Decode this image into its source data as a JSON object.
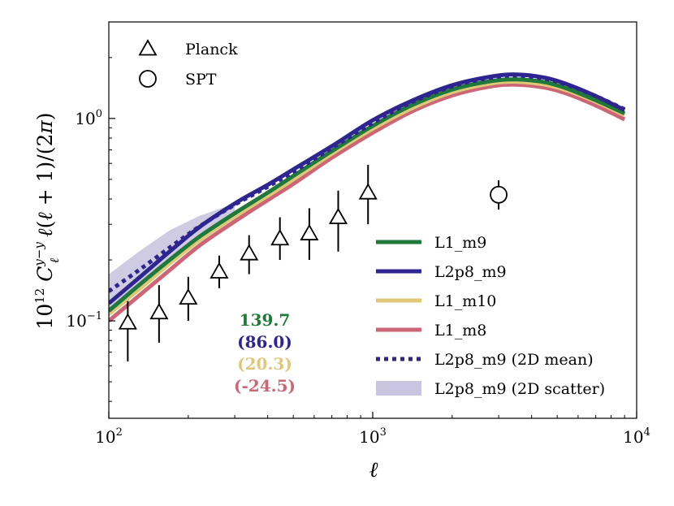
{
  "chart_data": {
    "type": "line",
    "title": "",
    "xlabel": "ℓ",
    "ylabel": "10¹² C_ℓ^{y−y} ℓ(ℓ+1)/(2π)",
    "xscale": "log",
    "yscale": "log",
    "xlim": [
      100,
      10000
    ],
    "ylim": [
      0.033,
      3.0
    ],
    "grid": false,
    "x_ticks": [
      {
        "value": 100,
        "base": "10",
        "exp": "2"
      },
      {
        "value": 1000,
        "base": "10",
        "exp": "3"
      },
      {
        "value": 10000,
        "base": "10",
        "exp": "4"
      }
    ],
    "y_ticks": [
      {
        "value": 0.1,
        "base": "10",
        "exp": "−1"
      },
      {
        "value": 1.0,
        "base": "10",
        "exp": "0"
      }
    ],
    "x": [
      100,
      130,
      170,
      220,
      300,
      400,
      500,
      700,
      1000,
      1400,
      2000,
      2800,
      3500,
      4500,
      5500,
      7000,
      9000
    ],
    "series": [
      {
        "name": "L1_m9",
        "color": "#1f7a3a",
        "style": "solid",
        "values": [
          0.112,
          0.15,
          0.2,
          0.26,
          0.34,
          0.43,
          0.52,
          0.69,
          0.92,
          1.16,
          1.39,
          1.53,
          1.56,
          1.51,
          1.4,
          1.23,
          1.06
        ]
      },
      {
        "name": "L2p8_m9",
        "color": "#2e2590",
        "style": "solid",
        "values": [
          0.122,
          0.163,
          0.22,
          0.29,
          0.38,
          0.47,
          0.56,
          0.73,
          0.98,
          1.22,
          1.46,
          1.61,
          1.65,
          1.59,
          1.47,
          1.29,
          1.1
        ]
      },
      {
        "name": "L1_m10",
        "color": "#e0c878",
        "style": "solid",
        "values": [
          0.108,
          0.143,
          0.192,
          0.25,
          0.328,
          0.415,
          0.5,
          0.67,
          0.89,
          1.12,
          1.35,
          1.49,
          1.52,
          1.47,
          1.37,
          1.21,
          1.04
        ]
      },
      {
        "name": "L1_m8",
        "color": "#cc6677",
        "style": "solid",
        "values": [
          0.1,
          0.133,
          0.178,
          0.235,
          0.31,
          0.395,
          0.475,
          0.64,
          0.85,
          1.08,
          1.3,
          1.44,
          1.47,
          1.42,
          1.32,
          1.16,
          0.99
        ]
      },
      {
        "name": "L2p8_m9 (2D mean)",
        "color": "#2e2590",
        "style": "dotted",
        "values": [
          0.14,
          0.178,
          0.23,
          0.292,
          0.375,
          0.46,
          0.545,
          0.715,
          0.95,
          1.2,
          1.44,
          1.59,
          1.63,
          1.57,
          1.46,
          1.29,
          1.11
        ]
      }
    ],
    "scatter_band": {
      "name": "L2p8_m9 (2D scatter)",
      "color": "#c9c5e0",
      "x": [
        100,
        130,
        170,
        220,
        300
      ],
      "lower": [
        0.105,
        0.14,
        0.19,
        0.25,
        0.33
      ],
      "upper": [
        0.17,
        0.22,
        0.28,
        0.33,
        0.38
      ]
    },
    "observations": [
      {
        "name": "Planck",
        "marker": "triangle",
        "points": [
          {
            "x": 118,
            "y": 0.098,
            "ylo": 0.063,
            "yhi": 0.125
          },
          {
            "x": 155,
            "y": 0.11,
            "ylo": 0.078,
            "yhi": 0.15
          },
          {
            "x": 200,
            "y": 0.13,
            "ylo": 0.1,
            "yhi": 0.165
          },
          {
            "x": 262,
            "y": 0.175,
            "ylo": 0.145,
            "yhi": 0.21
          },
          {
            "x": 340,
            "y": 0.215,
            "ylo": 0.17,
            "yhi": 0.265
          },
          {
            "x": 445,
            "y": 0.255,
            "ylo": 0.2,
            "yhi": 0.325
          },
          {
            "x": 575,
            "y": 0.27,
            "ylo": 0.2,
            "yhi": 0.36
          },
          {
            "x": 740,
            "y": 0.325,
            "ylo": 0.22,
            "yhi": 0.44
          },
          {
            "x": 960,
            "y": 0.43,
            "ylo": 0.3,
            "yhi": 0.59
          }
        ]
      },
      {
        "name": "SPT",
        "marker": "circle",
        "points": [
          {
            "x": 3000,
            "y": 0.42,
            "ylo": 0.355,
            "yhi": 0.495
          }
        ]
      }
    ],
    "annotations": [
      {
        "text": "139.7",
        "color": "#1f7a3a"
      },
      {
        "text": "(86.0)",
        "color": "#2e2590"
      },
      {
        "text": "(20.3)",
        "color": "#e0c878"
      },
      {
        "text": "(-24.5)",
        "color": "#cc6677"
      }
    ],
    "legend": {
      "marker_entries": [
        "Planck",
        "SPT"
      ],
      "marker_position": "top-left",
      "line_entries": [
        "L1_m9",
        "L2p8_m9",
        "L1_m10",
        "L1_m8",
        "L2p8_m9 (2D mean)",
        "L2p8_m9 (2D scatter)"
      ],
      "line_position": "lower-right"
    }
  }
}
